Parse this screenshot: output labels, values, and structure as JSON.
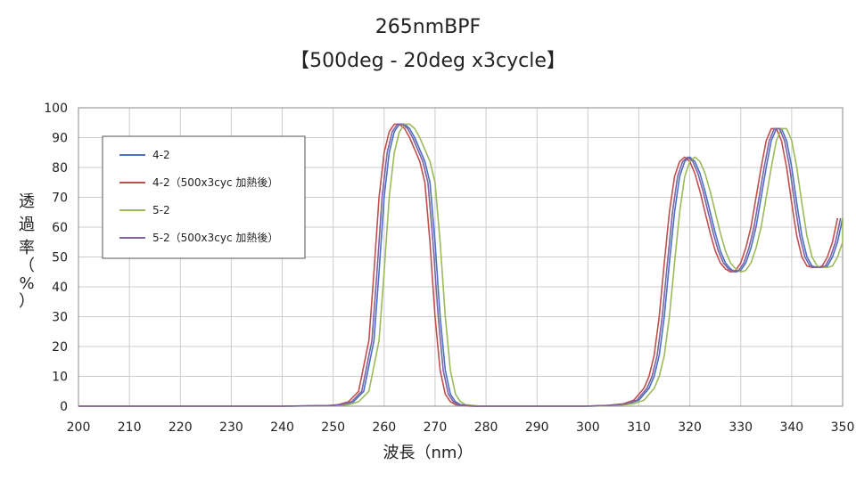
{
  "chart_data": {
    "type": "line",
    "title": "265nmBPF",
    "subtitle": "【500deg - 20deg x3cycle】",
    "xlabel": "波長（nm）",
    "ylabel": [
      "透",
      "過",
      "率",
      "（",
      "%",
      "）"
    ],
    "xlim": [
      200,
      350
    ],
    "ylim": [
      0,
      100
    ],
    "xticks": [
      200,
      210,
      220,
      230,
      240,
      250,
      260,
      270,
      280,
      290,
      300,
      310,
      320,
      330,
      340,
      350
    ],
    "yticks": [
      0,
      10,
      20,
      30,
      40,
      50,
      60,
      70,
      80,
      90,
      100
    ],
    "grid": true,
    "legend_position": "top-left",
    "series": [
      {
        "name": "4-2",
        "color": "#4a72c4",
        "shift": 0.0
      },
      {
        "name": "4-2（500x3cyc 加熱後）",
        "color": "#c0504d",
        "shift": -1.0
      },
      {
        "name": "5-2",
        "color": "#9bbb59",
        "shift": 1.0
      },
      {
        "name": "5-2（500x3cyc 加熱後）",
        "color": "#8064a2",
        "shift": -0.4
      }
    ],
    "base_curve": {
      "x": [
        200,
        240,
        250,
        252,
        254,
        256,
        258,
        259,
        260,
        261,
        262,
        263,
        264,
        265,
        266,
        267,
        268,
        269,
        270,
        271,
        272,
        273,
        274,
        275,
        278,
        282,
        290,
        300,
        305,
        308,
        310,
        312,
        313,
        314,
        315,
        316,
        317,
        318,
        319,
        320,
        321,
        322,
        323,
        324,
        325,
        326,
        327,
        328,
        329,
        330,
        331,
        332,
        333,
        334,
        335,
        336,
        337,
        338,
        339,
        340,
        341,
        342,
        343,
        344,
        345,
        346,
        347,
        348,
        349,
        350
      ],
      "y": [
        0,
        0,
        0.2,
        0.5,
        1.5,
        5,
        22,
        45,
        70,
        85,
        92,
        94.5,
        94.5,
        93,
        90,
        86,
        82,
        75,
        55,
        30,
        12,
        4,
        1.5,
        0.5,
        0,
        0,
        0,
        0,
        0.3,
        0.8,
        2,
        6,
        10,
        17,
        30,
        48,
        65,
        77,
        82,
        83.5,
        82,
        78,
        72,
        65,
        58,
        52,
        48,
        46,
        45,
        45.5,
        48,
        53,
        60,
        70,
        80,
        89,
        93,
        93,
        89,
        80,
        68,
        57,
        50,
        47,
        46.5,
        46.5,
        47,
        50,
        55,
        63
      ]
    }
  }
}
